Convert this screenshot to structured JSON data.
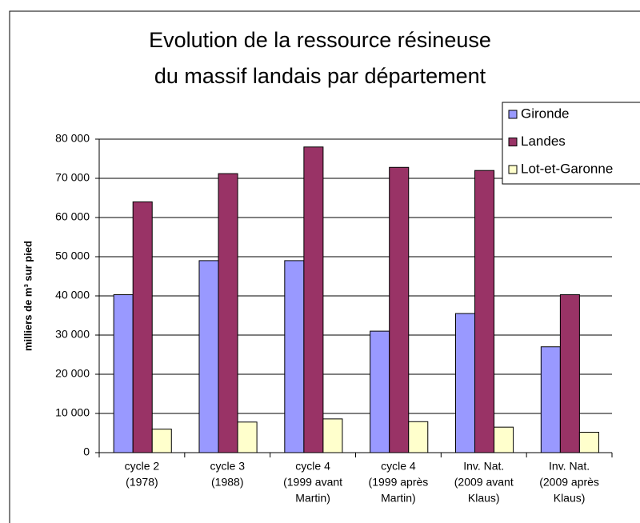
{
  "chart_data": {
    "type": "bar",
    "title": [
      "Evolution de la ressource résineuse",
      "du massif landais par département"
    ],
    "y_label": "milliers de m³ sur pied",
    "categories": [
      [
        "cycle 2",
        "(1978)"
      ],
      [
        "cycle 3",
        "(1988)"
      ],
      [
        "cycle 4",
        "(1999 avant",
        "Martin)"
      ],
      [
        "cycle 4",
        "(1999 après",
        "Martin)"
      ],
      [
        "Inv. Nat.",
        "(2009 avant",
        "Klaus)"
      ],
      [
        "Inv. Nat.",
        "(2009 après",
        "Klaus)"
      ]
    ],
    "series": [
      {
        "name": "Gironde",
        "color": "#9999ff",
        "values": [
          40300,
          49000,
          49000,
          31000,
          35500,
          27000
        ]
      },
      {
        "name": "Landes",
        "color": "#993366",
        "values": [
          64000,
          71200,
          78000,
          72800,
          72000,
          40300
        ]
      },
      {
        "name": "Lot-et-Garonne",
        "color": "#ffffcc",
        "values": [
          6000,
          7800,
          8600,
          7900,
          6500,
          5200
        ]
      }
    ],
    "ylim": [
      0,
      80000
    ],
    "yticks": [
      0,
      {
        "value": 10000,
        "label": "10 000"
      },
      {
        "value": 20000,
        "label": "20 000"
      },
      {
        "value": 30000,
        "label": "30 000"
      },
      {
        "value": 40000,
        "label": "40 000"
      },
      {
        "value": 50000,
        "label": "50 000"
      },
      {
        "value": 60000,
        "label": "60 000"
      },
      {
        "value": 70000,
        "label": "70 000"
      },
      {
        "value": 80000,
        "label": "80 000"
      }
    ],
    "grid": true,
    "legend": "top-right"
  }
}
